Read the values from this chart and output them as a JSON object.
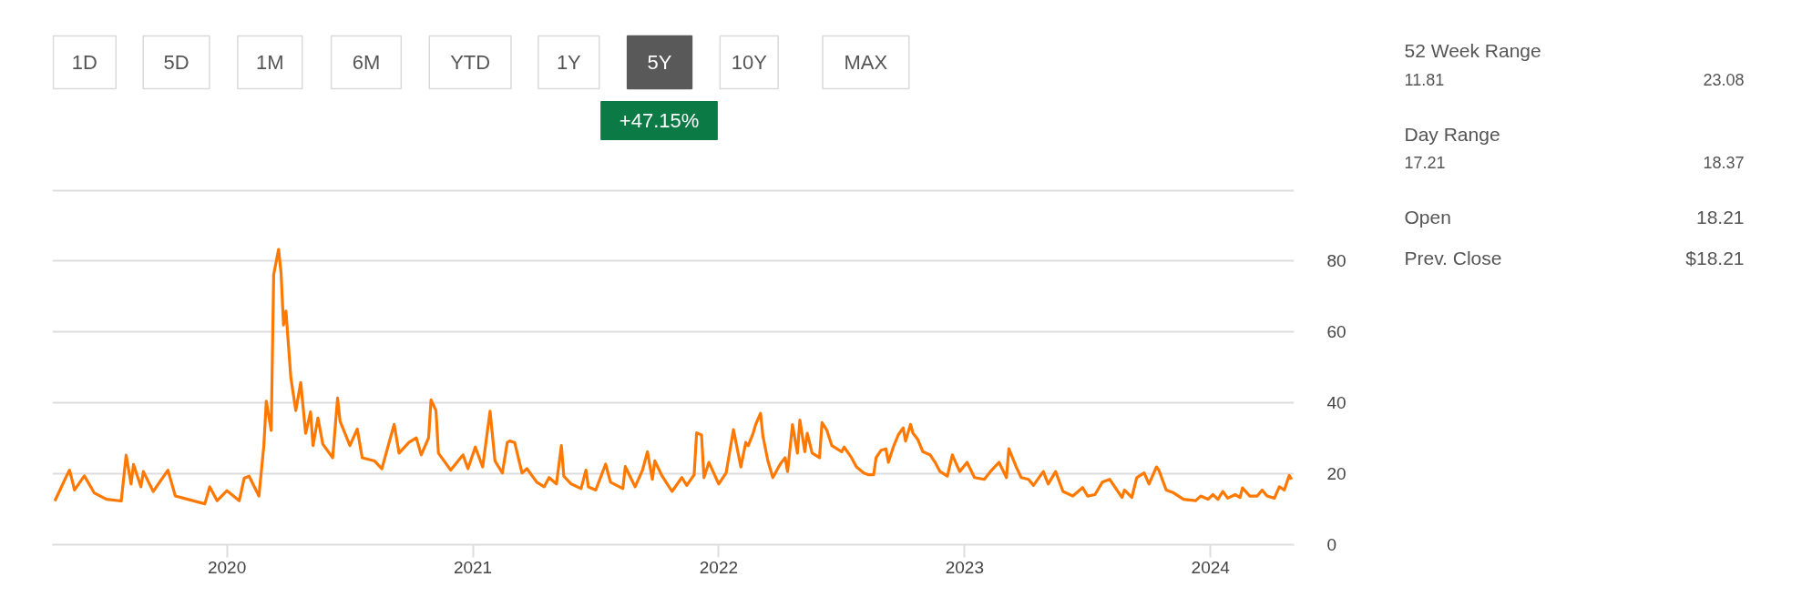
{
  "chart_data": [
    {
      "type": "line",
      "color": "#ff7800",
      "x": [
        2019.3,
        2019.35,
        2019.36,
        2019.38,
        2019.42,
        2019.46,
        2019.51,
        2019.57,
        2019.59,
        2019.61,
        2019.62,
        2019.65,
        2019.66,
        2019.7,
        2019.76,
        2019.79,
        2019.84,
        2019.91,
        2019.93,
        2019.96,
        2020.0,
        2020.05,
        2020.07,
        2020.09,
        2020.13,
        2020.15,
        2020.16,
        2020.18,
        2020.19,
        2020.21,
        2020.22,
        2020.23,
        2020.24,
        2020.26,
        2020.28,
        2020.3,
        2020.32,
        2020.34,
        2020.35,
        2020.37,
        2020.39,
        2020.43,
        2020.45,
        2020.46,
        2020.48,
        2020.5,
        2020.53,
        2020.55,
        2020.6,
        2020.63,
        2020.68,
        2020.7,
        2020.74,
        2020.77,
        2020.79,
        2020.82,
        2020.83,
        2020.85,
        2020.86,
        2020.91,
        2020.96,
        2020.98,
        2021.01,
        2021.04,
        2021.07,
        2021.09,
        2021.12,
        2021.14,
        2021.15,
        2021.17,
        2021.2,
        2021.22,
        2021.26,
        2021.29,
        2021.31,
        2021.34,
        2021.36,
        2021.37,
        2021.4,
        2021.44,
        2021.46,
        2021.47,
        2021.5,
        2021.54,
        2021.56,
        2021.61,
        2021.62,
        2021.66,
        2021.69,
        2021.71,
        2021.73,
        2021.74,
        2021.77,
        2021.81,
        2021.85,
        2021.87,
        2021.9,
        2021.91,
        2021.93,
        2021.94,
        2021.96,
        2022.0,
        2022.03,
        2022.06,
        2022.09,
        2022.11,
        2022.12,
        2022.14,
        2022.15,
        2022.17,
        2022.18,
        2022.2,
        2022.22,
        2022.25,
        2022.27,
        2022.28,
        2022.3,
        2022.32,
        2022.33,
        2022.35,
        2022.36,
        2022.38,
        2022.41,
        2022.42,
        2022.44,
        2022.46,
        2022.5,
        2022.51,
        2022.54,
        2022.56,
        2022.59,
        2022.61,
        2022.63,
        2022.64,
        2022.66,
        2022.68,
        2022.69,
        2022.71,
        2022.73,
        2022.75,
        2022.76,
        2022.78,
        2022.79,
        2022.81,
        2022.83,
        2022.86,
        2022.88,
        2022.9,
        2022.93,
        2022.95,
        2022.98,
        2023.01,
        2023.04,
        2023.08,
        2023.11,
        2023.14,
        2023.17,
        2023.18,
        2023.21,
        2023.23,
        2023.26,
        2023.28,
        2023.32,
        2023.34,
        2023.37,
        2023.4,
        2023.44,
        2023.48,
        2023.5,
        2023.53,
        2023.56,
        2023.59,
        2023.64,
        2023.65,
        2023.68,
        2023.7,
        2023.73,
        2023.75,
        2023.78,
        2023.79,
        2023.82,
        2023.85,
        2023.89,
        2023.94,
        2023.96,
        2023.99,
        2024.01,
        2024.03,
        2024.05,
        2024.07,
        2024.1,
        2024.12,
        2024.13,
        2024.16,
        2024.19,
        2024.21,
        2024.23,
        2024.26,
        2024.28,
        2024.3,
        2024.32,
        2024.33
      ],
      "values": [
        12.3,
        19.7,
        21,
        15.4,
        19.4,
        14.6,
        12.8,
        12.3,
        25.2,
        17.1,
        22.6,
        16.3,
        20.6,
        15,
        21,
        13.7,
        12.8,
        11.5,
        16.3,
        12.4,
        15.2,
        12.4,
        18.7,
        19.3,
        13.7,
        27.9,
        40.4,
        32.2,
        76.1,
        83.2,
        76.6,
        61.9,
        65.8,
        46.9,
        37.8,
        45.7,
        31.4,
        37.4,
        27.9,
        35.7,
        28.3,
        24.5,
        41.3,
        34.8,
        31.4,
        27.9,
        32.6,
        24.5,
        23.6,
        21.4,
        33.9,
        25.8,
        28.8,
        30.1,
        25.3,
        30.1,
        40.8,
        37.8,
        25.8,
        21,
        25.3,
        21.4,
        27.5,
        21.9,
        37.6,
        23.6,
        20.2,
        28.8,
        29.2,
        28.8,
        20.2,
        21.4,
        17.6,
        16.3,
        18.9,
        17.1,
        27.9,
        19.3,
        17.1,
        15.8,
        21,
        16.3,
        15.4,
        22.7,
        17.6,
        15.8,
        22,
        16.3,
        21,
        26.2,
        18.4,
        23.6,
        19.3,
        15,
        18.9,
        16.7,
        19.7,
        31.5,
        30.9,
        18.9,
        23.2,
        17.1,
        20.2,
        32.4,
        21.9,
        28.8,
        27.9,
        31.4,
        33.8,
        37,
        30.5,
        23.6,
        18.9,
        22.7,
        24.5,
        20.6,
        33.8,
        25.8,
        35.1,
        26.2,
        31.4,
        25.8,
        24.5,
        34.4,
        32.2,
        27.9,
        26.2,
        27.5,
        24.5,
        21.9,
        20.2,
        19.7,
        19.7,
        24.5,
        26.6,
        27,
        23.2,
        27.5,
        30.9,
        32.9,
        29.2,
        33.9,
        31.4,
        29.6,
        26.2,
        25.3,
        23.2,
        20.6,
        19.3,
        25.3,
        20.6,
        23.2,
        18.9,
        18.4,
        21,
        23.2,
        18.9,
        27,
        21.9,
        18.9,
        18.4,
        16.7,
        20.6,
        17.1,
        20.6,
        15,
        13.7,
        16.1,
        13.7,
        14.1,
        17.6,
        18.4,
        13.3,
        15.4,
        13.3,
        18.9,
        20.2,
        17.1,
        21.9,
        21,
        15.4,
        14.6,
        12.8,
        12.4,
        13.7,
        12.8,
        14.1,
        12.8,
        15,
        13.1,
        14.1,
        13.3,
        16,
        13.7,
        13.7,
        15.4,
        13.7,
        13.1,
        16.3,
        15.4,
        19.5,
        18.4
      ],
      "xlim": [
        2019.29,
        2024.34
      ],
      "ylim": [
        0,
        100
      ],
      "xticks": [
        2020,
        2021,
        2022,
        2023,
        2024
      ],
      "yticks": [
        0,
        20,
        40,
        60,
        80,
        {
          "value": 100,
          "label": null
        }
      ],
      "grid": "y",
      "annotations": [
        "1D",
        "5D",
        "1M",
        "6M",
        "YTD",
        "1Y",
        "5Y",
        "10Y",
        "MAX",
        "+47.15%"
      ]
    },
    {
      "type": "other",
      "annotations": [
        "52 Week Range",
        "11.81",
        "23.08",
        "Day Range",
        "17.21",
        "18.37",
        "Open",
        "18.21",
        "Prev. Close",
        "$18.21"
      ]
    }
  ]
}
